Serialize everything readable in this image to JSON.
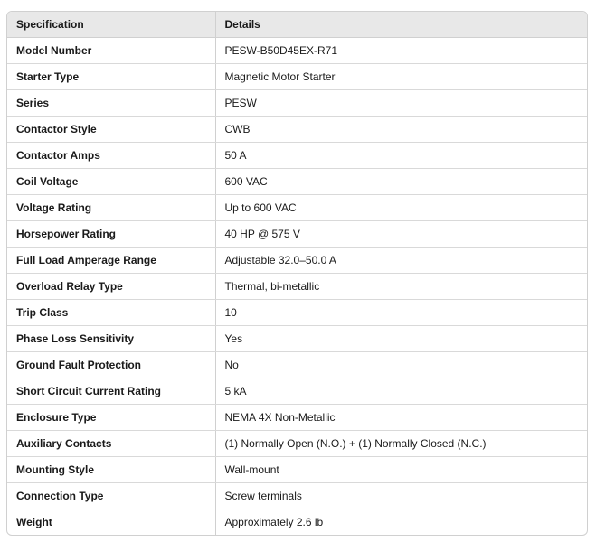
{
  "table": {
    "headers": [
      "Specification",
      "Details"
    ],
    "rows": [
      [
        "Model Number",
        "PESW-B50D45EX-R71"
      ],
      [
        "Starter Type",
        "Magnetic Motor Starter"
      ],
      [
        "Series",
        "PESW"
      ],
      [
        "Contactor Style",
        "CWB"
      ],
      [
        "Contactor Amps",
        "50 A"
      ],
      [
        "Coil Voltage",
        "600 VAC"
      ],
      [
        "Voltage Rating",
        "Up to 600 VAC"
      ],
      [
        "Horsepower Rating",
        "40 HP @ 575 V"
      ],
      [
        "Full Load Amperage Range",
        "Adjustable 32.0–50.0 A"
      ],
      [
        "Overload Relay Type",
        "Thermal, bi-metallic"
      ],
      [
        "Trip Class",
        "10"
      ],
      [
        "Phase Loss Sensitivity",
        "Yes"
      ],
      [
        "Ground Fault Protection",
        "No"
      ],
      [
        "Short Circuit Current Rating",
        "5 kA"
      ],
      [
        "Enclosure Type",
        "NEMA 4X Non-Metallic"
      ],
      [
        "Auxiliary Contacts",
        "(1) Normally Open (N.O.) + (1) Normally Closed (N.C.)"
      ],
      [
        "Mounting Style",
        "Wall-mount"
      ],
      [
        "Connection Type",
        "Screw terminals"
      ],
      [
        "Weight",
        "Approximately 2.6 lb"
      ]
    ]
  }
}
